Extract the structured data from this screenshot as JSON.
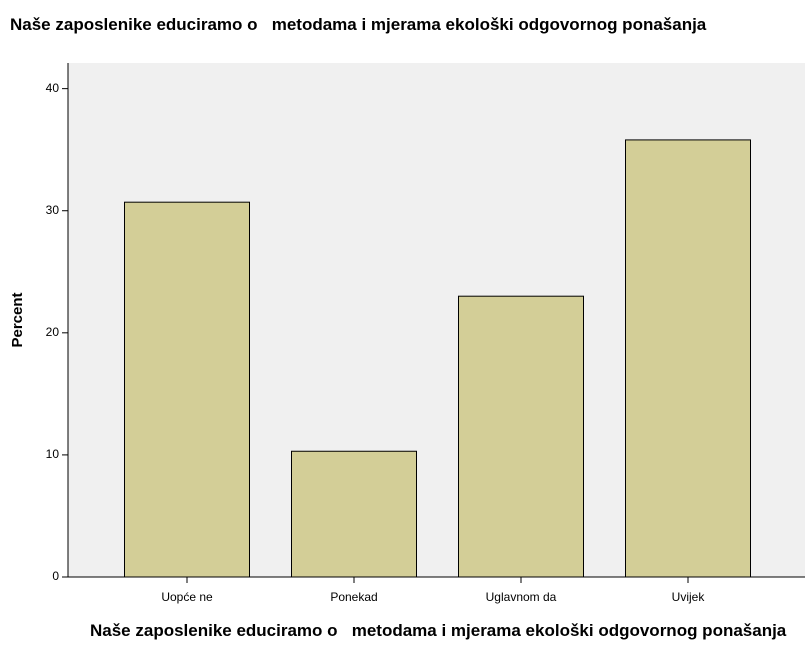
{
  "chart_data": {
    "type": "bar",
    "title": "Naše zaposlenike educiramo o   metodama i mjerama ekološki odgovornog ponašanja",
    "x_label": "Naše zaposlenike educiramo o   metodama i mjerama ekološki odgovornog ponašanja",
    "y_label": "Percent",
    "categories": [
      "Uopće ne",
      "Ponekad",
      "Uglavnom da",
      "Uvijek"
    ],
    "values": [
      30.7,
      10.3,
      23.0,
      35.8
    ],
    "color": "#d3ce97",
    "ylim": [
      0,
      42.1
    ],
    "yticks": [
      0,
      10,
      20,
      30,
      40
    ],
    "grid": false
  }
}
